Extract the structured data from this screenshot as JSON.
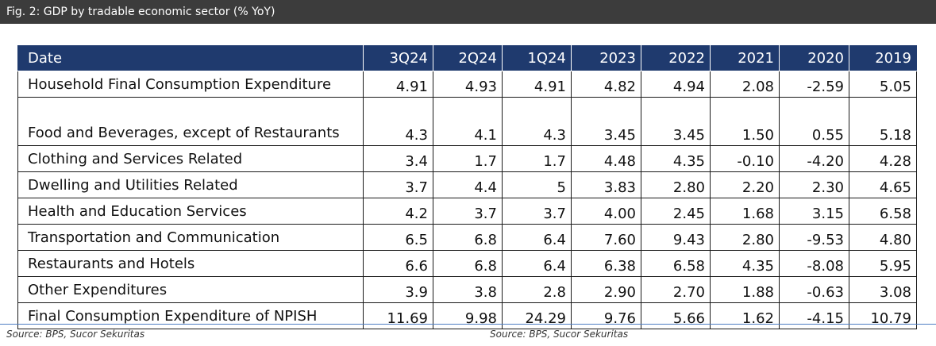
{
  "figure": {
    "title": "Fig. 2: GDP by tradable economic sector (% YoY)"
  },
  "table": {
    "columns": [
      "Date",
      "3Q24",
      "2Q24",
      "1Q24",
      "2023",
      "2022",
      "2021",
      "2020",
      "2019"
    ],
    "rows": [
      {
        "label": "Household Final Consumption Expenditure",
        "values": [
          "4.91",
          "4.93",
          "4.91",
          "4.82",
          "4.94",
          "2.08",
          "-2.59",
          "5.05"
        ]
      },
      {
        "label": "Food and Beverages, except of Restaurants",
        "values": [
          "4.3",
          "4.1",
          "4.3",
          "3.45",
          "3.45",
          "1.50",
          "0.55",
          "5.18"
        ]
      },
      {
        "label": "Clothing and Services Related",
        "values": [
          "3.4",
          "1.7",
          "1.7",
          "4.48",
          "4.35",
          "-0.10",
          "-4.20",
          "4.28"
        ]
      },
      {
        "label": "Dwelling and Utilities Related",
        "values": [
          "3.7",
          "4.4",
          "5",
          "3.83",
          "2.80",
          "2.20",
          "2.30",
          "4.65"
        ]
      },
      {
        "label": "Health and Education Services",
        "values": [
          "4.2",
          "3.7",
          "3.7",
          "4.00",
          "2.45",
          "1.68",
          "3.15",
          "6.58"
        ]
      },
      {
        "label": "Transportation and Communication",
        "values": [
          "6.5",
          "6.8",
          "6.4",
          "7.60",
          "9.43",
          "2.80",
          "-9.53",
          "4.80"
        ]
      },
      {
        "label": "Restaurants and Hotels",
        "values": [
          "6.6",
          "6.8",
          "6.4",
          "6.38",
          "6.58",
          "4.35",
          "-8.08",
          "5.95"
        ]
      },
      {
        "label": "Other Expenditures",
        "values": [
          "3.9",
          "3.8",
          "2.8",
          "2.90",
          "2.70",
          "1.88",
          "-0.63",
          "3.08"
        ]
      },
      {
        "label": "Final Consumption Expenditure of NPISH",
        "values": [
          "11.69",
          "9.98",
          "24.29",
          "9.76",
          "5.66",
          "1.62",
          "-4.15",
          "10.79"
        ]
      }
    ]
  },
  "footer": {
    "source_left": "Source: BPS, Sucor Sekuritas",
    "source_right": "Source: BPS, Sucor Sekuritas"
  },
  "colors": {
    "header_bar": "#3c3c3c",
    "table_header": "#1f3a6e",
    "rule": "#4f7fc4"
  }
}
